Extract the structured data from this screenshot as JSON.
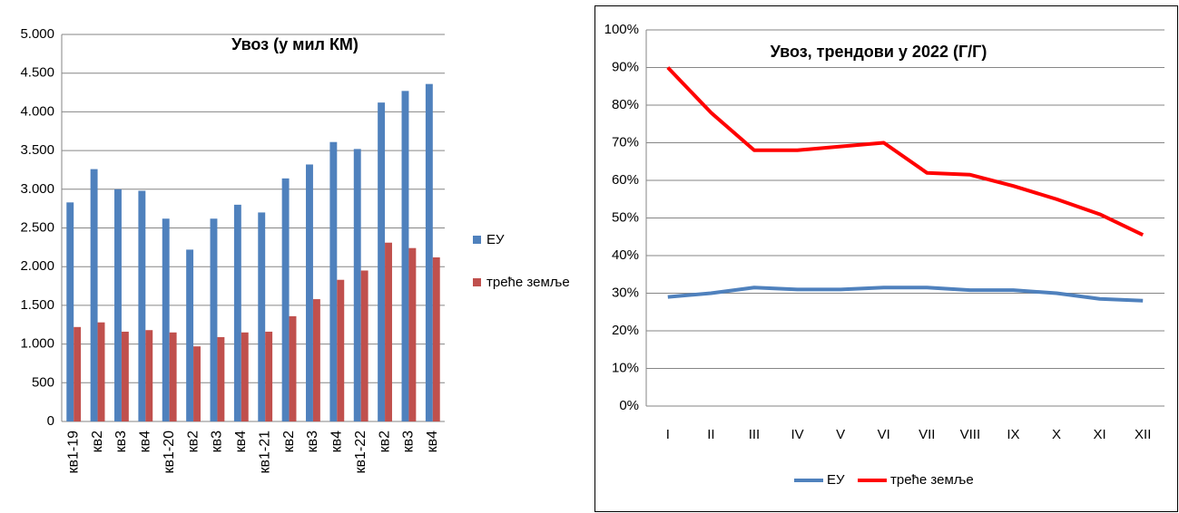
{
  "chart_data": [
    {
      "type": "bar",
      "title": "Увоз (у мил КМ)",
      "categories": [
        "кв1-19",
        "кв2",
        "кв3",
        "кв4",
        "кв1-20",
        "кв2",
        "кв3",
        "кв4",
        "кв1-21",
        "кв2",
        "кв3",
        "кв4",
        "кв1-22",
        "кв2",
        "кв3",
        "кв4"
      ],
      "series": [
        {
          "name": "ЕУ",
          "color": "#4f81bd",
          "values": [
            2830,
            3260,
            3000,
            2980,
            2620,
            2220,
            2620,
            2800,
            2700,
            3140,
            3320,
            3610,
            3520,
            4120,
            4270,
            4360
          ]
        },
        {
          "name": "треће земље",
          "color": "#c0504d",
          "values": [
            1220,
            1280,
            1160,
            1180,
            1150,
            970,
            1090,
            1150,
            1160,
            1360,
            1580,
            1830,
            1950,
            2310,
            2240,
            2120
          ]
        }
      ],
      "ylim": [
        0,
        5000
      ],
      "yticks": [
        0,
        500,
        {
          "value": 1000,
          "label": "1.000"
        },
        {
          "value": 1500,
          "label": "1.500"
        },
        {
          "value": 2000,
          "label": "2.000"
        },
        {
          "value": 2500,
          "label": "2.500"
        },
        {
          "value": 3000,
          "label": "3.000"
        },
        {
          "value": 3500,
          "label": "3.500"
        },
        {
          "value": 4000,
          "label": "4.000"
        },
        {
          "value": 4500,
          "label": "4.500"
        },
        {
          "value": 5000,
          "label": "5.000"
        }
      ],
      "grid": true,
      "legend": "right"
    },
    {
      "type": "line",
      "title": "Увоз, трендови у 2022 (Г/Г)",
      "categories": [
        "I",
        "II",
        "III",
        "IV",
        "V",
        "VI",
        "VII",
        "VIII",
        "IX",
        "X",
        "XI",
        "XII"
      ],
      "series": [
        {
          "name": "ЕУ",
          "color": "#4f81bd",
          "values": [
            29,
            30,
            31.5,
            31,
            31,
            31.5,
            31.5,
            30.8,
            30.8,
            30,
            28.5,
            28
          ]
        },
        {
          "name": "треће земље",
          "color": "#ff0000",
          "values": [
            90,
            78,
            68,
            68,
            69,
            70,
            62,
            61.5,
            58.5,
            55,
            51,
            45.5
          ]
        }
      ],
      "ylim": [
        0,
        100
      ],
      "yticks": [
        {
          "value": 0,
          "label": "0%"
        },
        {
          "value": 10,
          "label": "10%"
        },
        {
          "value": 20,
          "label": "20%"
        },
        {
          "value": 30,
          "label": "30%"
        },
        {
          "value": 40,
          "label": "40%"
        },
        {
          "value": 50,
          "label": "50%"
        },
        {
          "value": 60,
          "label": "60%"
        },
        {
          "value": 70,
          "label": "70%"
        },
        {
          "value": 80,
          "label": "80%"
        },
        {
          "value": 90,
          "label": "90%"
        },
        {
          "value": 100,
          "label": "100%"
        }
      ],
      "grid": true,
      "legend": "bottom"
    }
  ]
}
